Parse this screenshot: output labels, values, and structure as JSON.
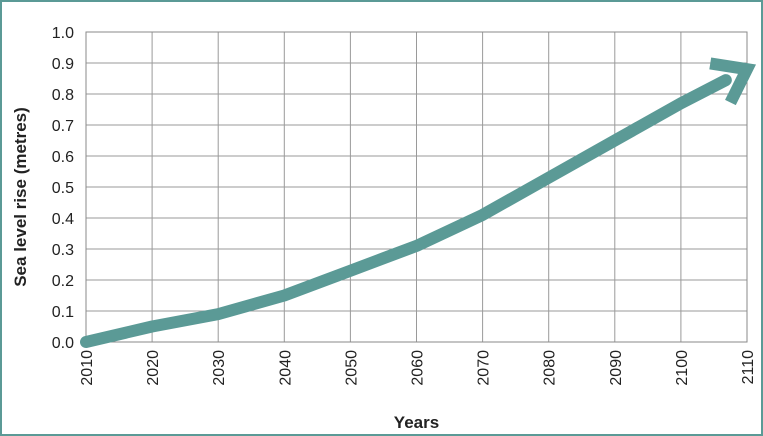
{
  "chart_data": {
    "type": "line",
    "title": "",
    "xlabel": "Years",
    "ylabel": "Sea level rise (metres)",
    "xlim": [
      2010,
      2110
    ],
    "ylim": [
      0.0,
      1.0
    ],
    "x_ticks": [
      "2010",
      "2020",
      "2030",
      "2040",
      "2050",
      "2060",
      "2070",
      "2080",
      "2090",
      "2100",
      "2110"
    ],
    "y_ticks": [
      "0.0",
      "0.1",
      "0.2",
      "0.3",
      "0.4",
      "0.5",
      "0.6",
      "0.7",
      "0.8",
      "0.9",
      "1.0"
    ],
    "grid": true,
    "series": [
      {
        "color": "#5b9a96",
        "marker": "arrow-end",
        "x": [
          2010,
          2020,
          2030,
          2040,
          2050,
          2060,
          2070,
          2080,
          2090,
          2100,
          2110
        ],
        "y": [
          0.0,
          0.05,
          0.09,
          0.15,
          0.23,
          0.31,
          0.41,
          0.53,
          0.65,
          0.77,
          0.88
        ]
      }
    ]
  }
}
